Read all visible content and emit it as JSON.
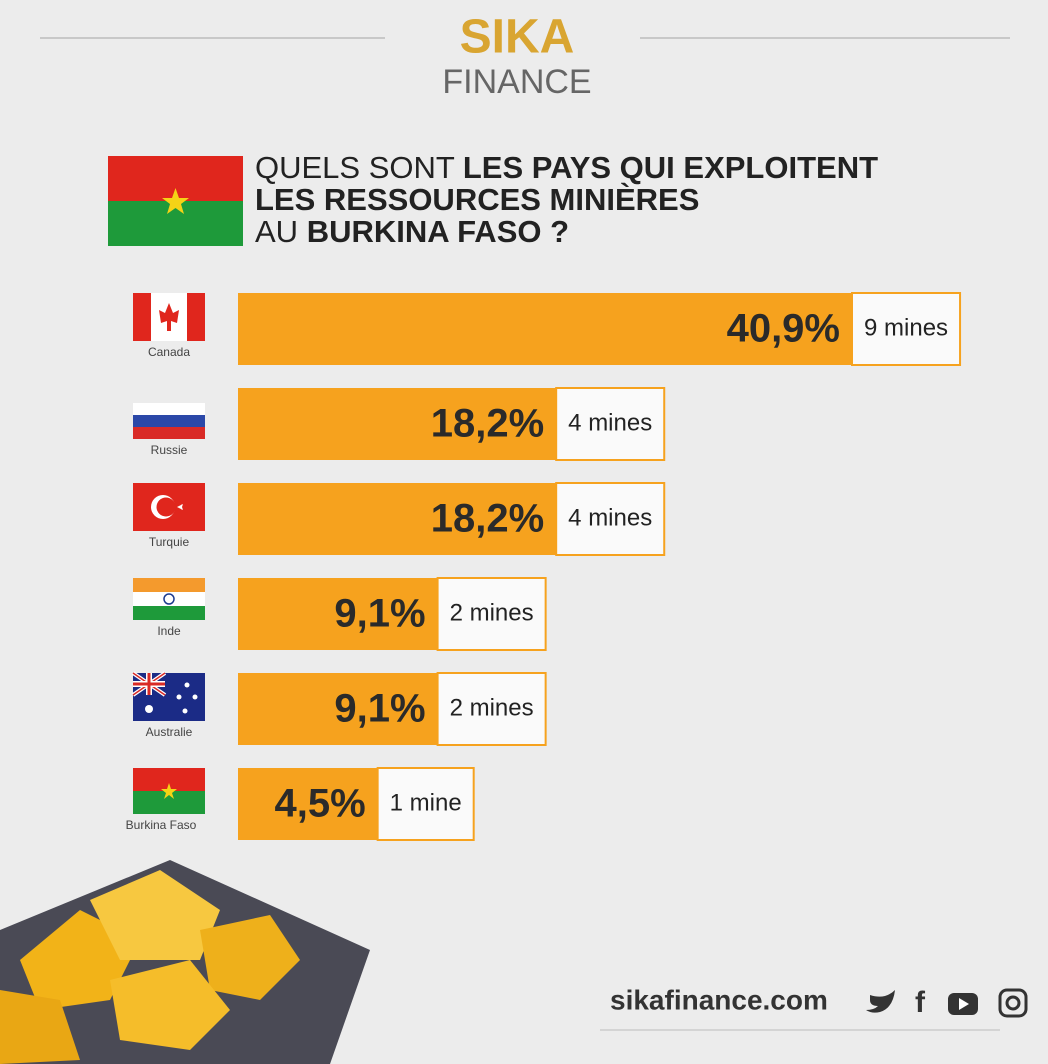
{
  "header": {
    "logo_top": "SIKA",
    "logo_bottom": "FINANCE",
    "title_parts": [
      "QUELS SONT ",
      "LES PAYS QUI EXPLOITENT",
      "LES RESSOURCES MINIÈRES",
      "AU ",
      "BURKINA FASO ?"
    ]
  },
  "chart_data": {
    "type": "bar",
    "orientation": "horizontal",
    "categories": [
      "Canada",
      "Russie",
      "Turquie",
      "Inde",
      "Australie",
      "Burkina Faso"
    ],
    "values": [
      40.9,
      18.2,
      18.2,
      9.1,
      9.1,
      4.5
    ],
    "value_labels": [
      "40,9%",
      "18,2%",
      "18,2%",
      "9,1%",
      "9,1%",
      "4,5%"
    ],
    "mine_labels": [
      "9 mines",
      "4 mines",
      "4 mines",
      "2 mines",
      "2 mines",
      "1 mine"
    ],
    "color": "#f6a21e"
  },
  "footer": {
    "site": "sikafinance.com"
  }
}
